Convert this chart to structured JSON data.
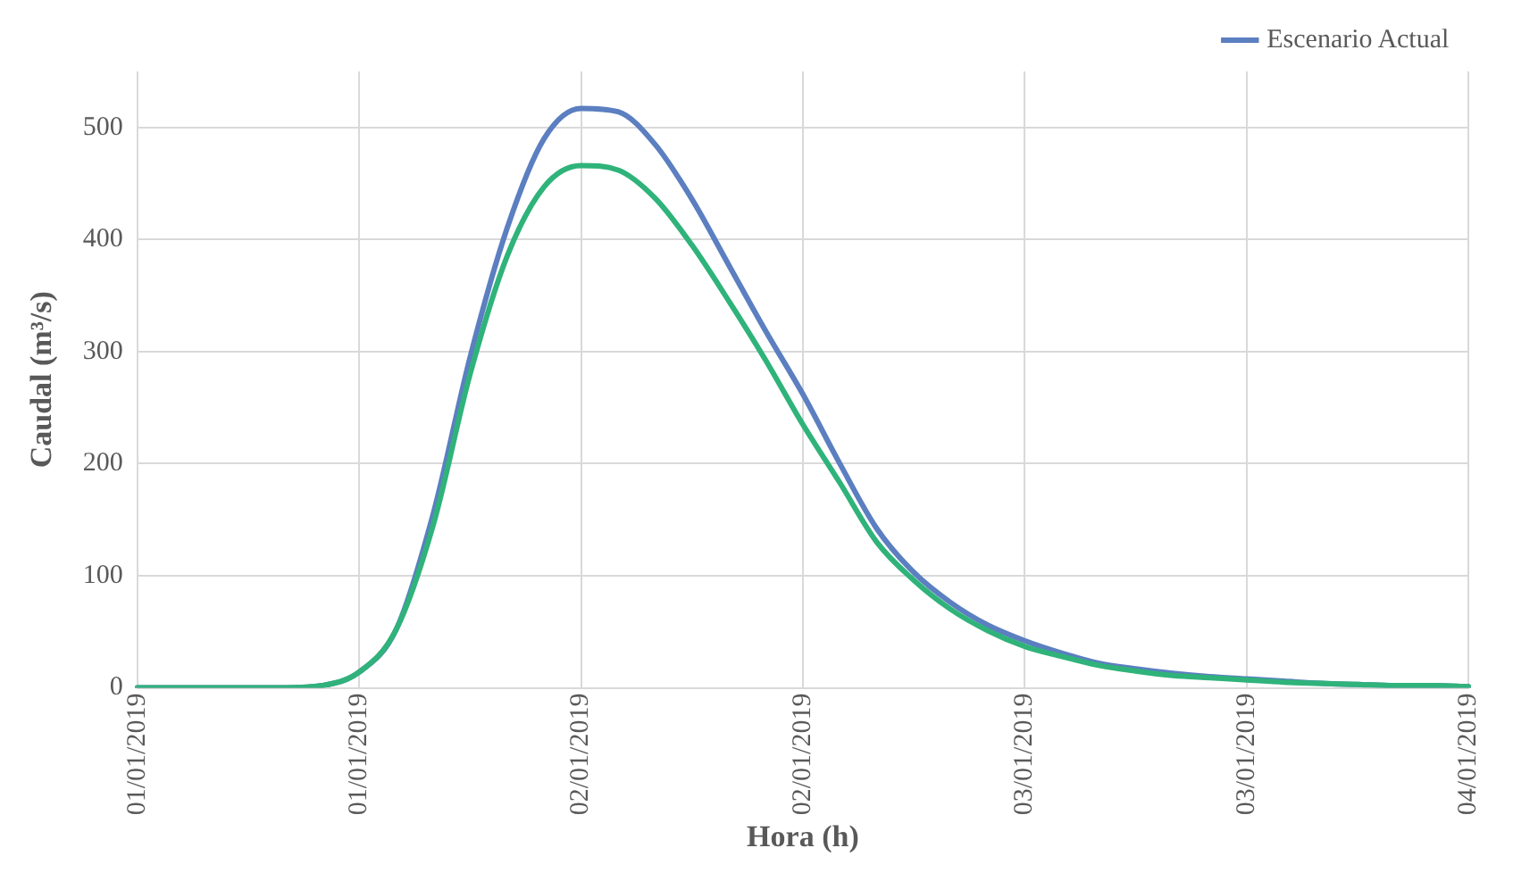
{
  "chart_data": {
    "type": "line",
    "xlabel": "Hora (h)",
    "ylabel": "Caudal (m³/s)",
    "categories": [
      "01/01/2019",
      null,
      null,
      null,
      null,
      null,
      "01/01/2019",
      null,
      null,
      null,
      null,
      null,
      "02/01/2019",
      null,
      null,
      null,
      null,
      null,
      "02/01/2019",
      null,
      null,
      null,
      null,
      null,
      "03/01/2019",
      null,
      null,
      null,
      null,
      null,
      "03/01/2019",
      null,
      null,
      null,
      null,
      null,
      "04/01/2019"
    ],
    "series": [
      {
        "name": "Escenario Actual",
        "color": "#5b7fc0",
        "values": [
          0,
          0,
          0,
          0,
          0,
          2,
          14,
          52,
          155,
          295,
          410,
          490,
          517,
          514,
          485,
          436,
          377,
          318,
          262,
          200,
          142,
          103,
          76,
          56,
          42,
          31,
          22,
          17,
          13,
          10,
          8,
          6,
          4,
          3,
          2,
          2,
          1
        ]
      },
      {
        "color": "#2fb37a",
        "values": [
          0,
          0,
          0,
          0,
          0,
          2,
          14,
          52,
          145,
          280,
          385,
          447,
          466,
          462,
          437,
          395,
          345,
          292,
          235,
          183,
          130,
          96,
          70,
          51,
          37,
          28,
          20,
          15,
          11,
          9,
          7,
          5,
          4,
          3,
          2,
          2,
          1
        ]
      }
    ],
    "ylim": [
      0,
      550
    ],
    "yticks": [
      0,
      100,
      200,
      300,
      400,
      500
    ],
    "grid": true,
    "legend": "top right",
    "marker": "none",
    "line_style": "solid"
  }
}
